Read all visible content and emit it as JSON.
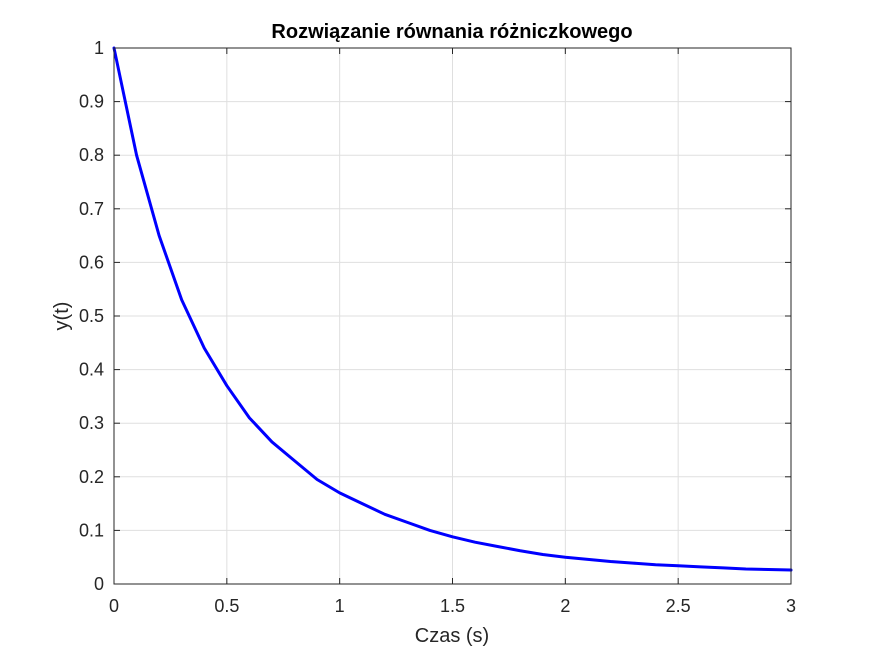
{
  "chart_data": {
    "type": "line",
    "title": "Rozwiązanie równania różniczkowego",
    "xlabel": "Czas (s)",
    "ylabel": "y(t)",
    "xlim": [
      0,
      3
    ],
    "ylim": [
      0,
      1
    ],
    "grid": true,
    "x_ticks": [
      0,
      0.5,
      1,
      1.5,
      2,
      2.5,
      3
    ],
    "x_tick_labels": [
      "0",
      "0.5",
      "1",
      "1.5",
      "2",
      "2.5",
      "3"
    ],
    "y_ticks": [
      0,
      0.1,
      0.2,
      0.3,
      0.4,
      0.5,
      0.6,
      0.7,
      0.8,
      0.9,
      1
    ],
    "y_tick_labels": [
      "0",
      "0.1",
      "0.2",
      "0.3",
      "0.4",
      "0.5",
      "0.6",
      "0.7",
      "0.8",
      "0.9",
      "1"
    ],
    "series": [
      {
        "color": "#0000ff",
        "x": [
          0,
          0.1,
          0.2,
          0.3,
          0.4,
          0.5,
          0.6,
          0.7,
          0.8,
          0.9,
          1.0,
          1.1,
          1.2,
          1.3,
          1.4,
          1.5,
          1.6,
          1.7,
          1.8,
          1.9,
          2.0,
          2.1,
          2.2,
          2.3,
          2.4,
          2.5,
          2.6,
          2.7,
          2.8,
          2.9,
          3.0
        ],
        "y": [
          1.0,
          0.8,
          0.65,
          0.53,
          0.44,
          0.37,
          0.31,
          0.265,
          0.23,
          0.195,
          0.17,
          0.15,
          0.13,
          0.115,
          0.1,
          0.088,
          0.078,
          0.07,
          0.062,
          0.055,
          0.05,
          0.046,
          0.042,
          0.039,
          0.036,
          0.034,
          0.032,
          0.03,
          0.028,
          0.027,
          0.026
        ]
      }
    ]
  }
}
